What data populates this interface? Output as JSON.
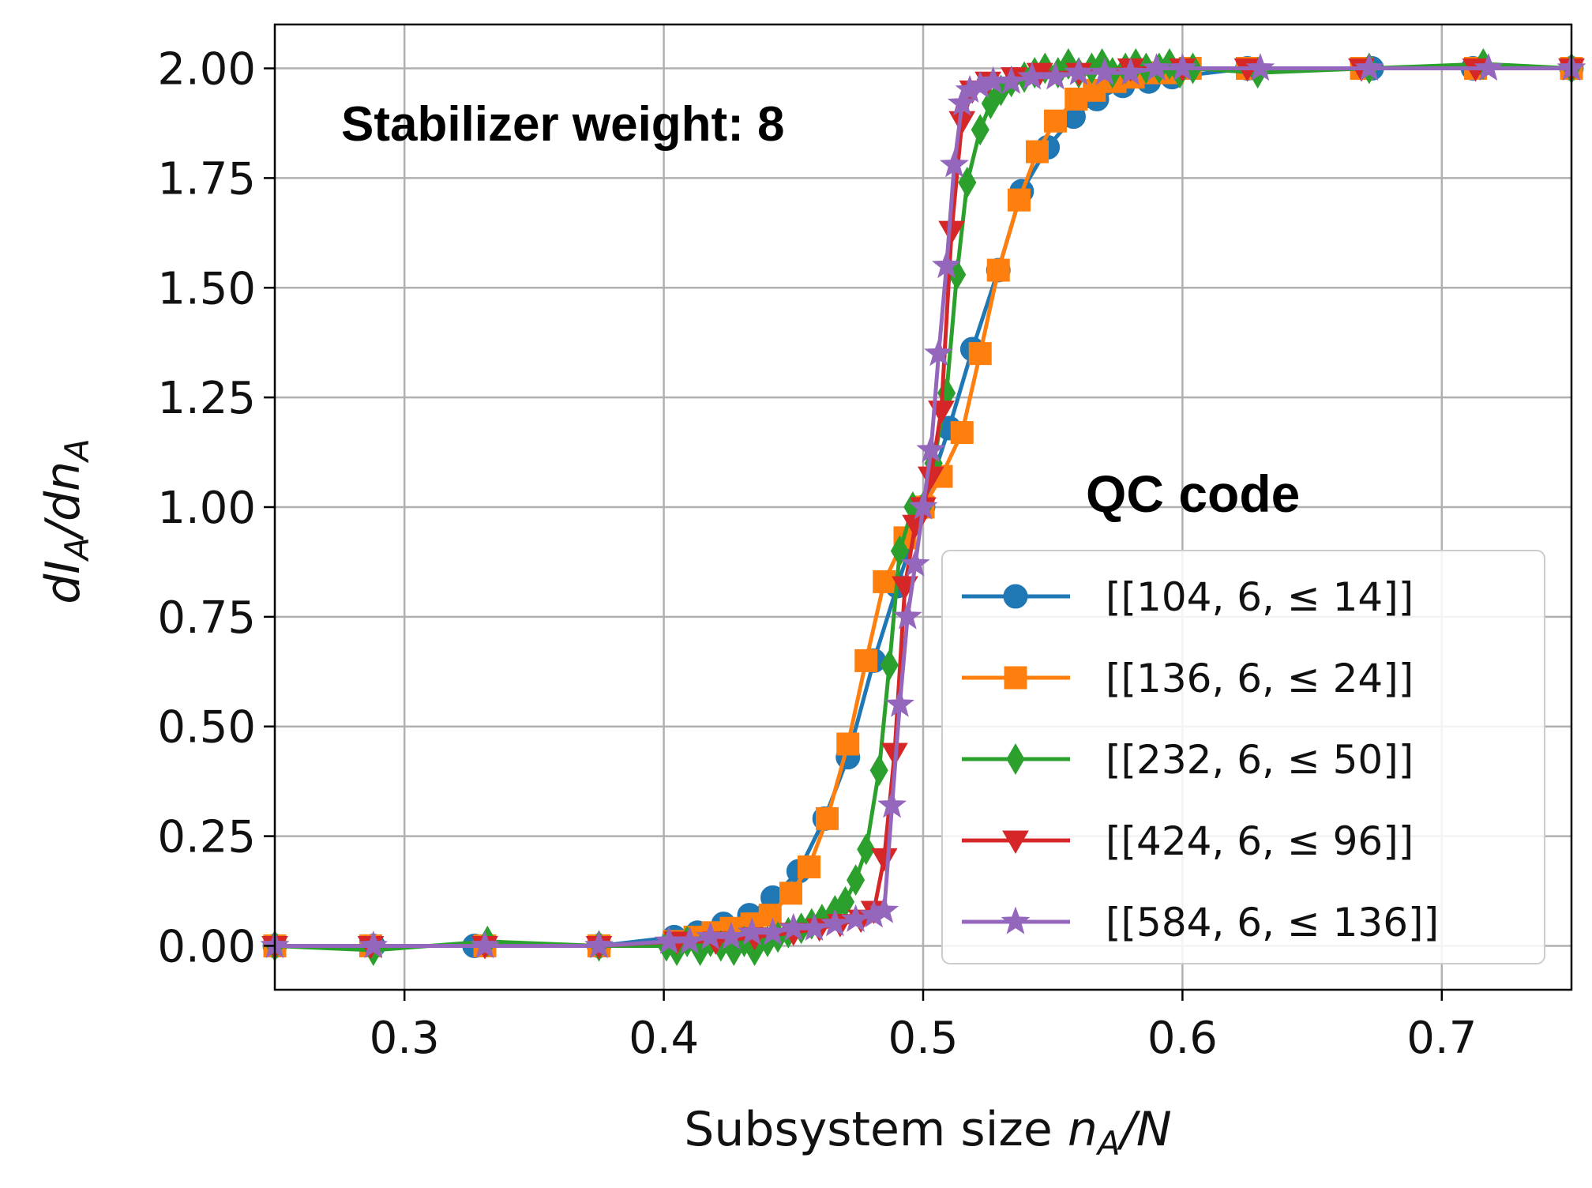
{
  "chart_data": {
    "type": "line",
    "xlabel_text": "Subsystem size ",
    "xlabel_var": "n",
    "xlabel_sub": "A",
    "xlabel_tail": "/N",
    "ylabel_d1": "dI",
    "ylabel_sub1": "A",
    "ylabel_mid": "/dn",
    "ylabel_sub2": "A",
    "xlim": [
      0.25,
      0.75
    ],
    "ylim": [
      -0.1,
      2.1
    ],
    "xticks": [
      0.3,
      0.4,
      0.5,
      0.6,
      0.7
    ],
    "xtick_labels": [
      "0.3",
      "0.4",
      "0.5",
      "0.6",
      "0.7"
    ],
    "yticks": [
      0,
      0.25,
      0.5,
      0.75,
      1.0,
      1.25,
      1.5,
      1.75,
      2.0
    ],
    "ytick_labels": [
      "0.00",
      "0.25",
      "0.50",
      "0.75",
      "1.00",
      "1.25",
      "1.50",
      "1.75",
      "2.00"
    ],
    "grid": true,
    "annotation": "Stabilizer weight: 8",
    "legend_title": "QC code",
    "legend_position": "lower-right",
    "series": [
      {
        "name": "[[104, 6, ≤ 14]]",
        "color": "#1f77b4",
        "marker": "circle",
        "x": [
          0.25,
          0.288,
          0.327,
          0.375,
          0.404,
          0.413,
          0.423,
          0.433,
          0.442,
          0.452,
          0.462,
          0.471,
          0.481,
          0.49,
          0.5,
          0.51,
          0.519,
          0.529,
          0.538,
          0.548,
          0.558,
          0.567,
          0.577,
          0.587,
          0.596,
          0.625,
          0.673,
          0.712,
          0.75
        ],
        "y": [
          0.0,
          0.0,
          0.0,
          0.0,
          0.02,
          0.03,
          0.05,
          0.07,
          0.11,
          0.17,
          0.29,
          0.43,
          0.65,
          0.82,
          1.0,
          1.18,
          1.36,
          1.54,
          1.72,
          1.82,
          1.89,
          1.93,
          1.96,
          1.97,
          1.98,
          2.0,
          2.0,
          2.0,
          2.0
        ]
      },
      {
        "name": "[[136, 6, ≤ 24]]",
        "color": "#ff7f0e",
        "marker": "square",
        "x": [
          0.25,
          0.287,
          0.331,
          0.375,
          0.404,
          0.412,
          0.419,
          0.426,
          0.434,
          0.441,
          0.449,
          0.456,
          0.463,
          0.471,
          0.478,
          0.485,
          0.493,
          0.5,
          0.507,
          0.515,
          0.522,
          0.529,
          0.537,
          0.544,
          0.551,
          0.559,
          0.566,
          0.574,
          0.581,
          0.588,
          0.596,
          0.603,
          0.625,
          0.669,
          0.713,
          0.75
        ],
        "y": [
          0.0,
          0.0,
          0.0,
          0.0,
          0.01,
          0.02,
          0.03,
          0.04,
          0.05,
          0.07,
          0.12,
          0.18,
          0.29,
          0.46,
          0.65,
          0.83,
          0.93,
          1.0,
          1.07,
          1.17,
          1.35,
          1.54,
          1.7,
          1.81,
          1.88,
          1.93,
          1.95,
          1.97,
          1.98,
          1.99,
          1.99,
          2.0,
          2.0,
          2.0,
          2.0,
          2.0
        ]
      },
      {
        "name": "[[232, 6, ≤ 50]]",
        "color": "#2ca02c",
        "marker": "diamond",
        "x": [
          0.25,
          0.288,
          0.332,
          0.375,
          0.401,
          0.405,
          0.409,
          0.414,
          0.418,
          0.422,
          0.427,
          0.431,
          0.435,
          0.44,
          0.444,
          0.448,
          0.453,
          0.457,
          0.461,
          0.466,
          0.47,
          0.474,
          0.478,
          0.483,
          0.487,
          0.491,
          0.496,
          0.5,
          0.504,
          0.509,
          0.513,
          0.517,
          0.522,
          0.526,
          0.53,
          0.534,
          0.539,
          0.543,
          0.547,
          0.552,
          0.556,
          0.56,
          0.565,
          0.569,
          0.573,
          0.578,
          0.582,
          0.586,
          0.591,
          0.595,
          0.599,
          0.604,
          0.629,
          0.672,
          0.716,
          0.75
        ],
        "y": [
          0.0,
          -0.01,
          0.01,
          0.0,
          0.0,
          -0.01,
          0.01,
          -0.01,
          0.01,
          0.0,
          -0.01,
          0.01,
          -0.01,
          0.01,
          0.02,
          0.03,
          0.04,
          0.05,
          0.06,
          0.08,
          0.1,
          0.15,
          0.22,
          0.4,
          0.64,
          0.9,
          1.0,
          1.0,
          1.1,
          1.26,
          1.53,
          1.74,
          1.86,
          1.92,
          1.95,
          1.97,
          1.98,
          1.99,
          2.0,
          1.99,
          2.01,
          1.99,
          2.0,
          2.01,
          1.99,
          2.0,
          2.01,
          2.0,
          2.0,
          2.01,
          1.99,
          2.0,
          1.99,
          2.0,
          2.01,
          2.0
        ]
      },
      {
        "name": "[[424, 6, ≤ 96]]",
        "color": "#d62728",
        "marker": "triangle-down",
        "x": [
          0.25,
          0.287,
          0.331,
          0.375,
          0.405,
          0.42,
          0.435,
          0.45,
          0.46,
          0.468,
          0.476,
          0.481,
          0.485,
          0.489,
          0.493,
          0.497,
          0.5,
          0.503,
          0.507,
          0.511,
          0.515,
          0.519,
          0.525,
          0.535,
          0.545,
          0.56,
          0.58,
          0.6,
          0.625,
          0.669,
          0.713,
          0.75
        ],
        "y": [
          0.0,
          0.0,
          0.0,
          0.0,
          0.01,
          0.01,
          0.02,
          0.03,
          0.04,
          0.05,
          0.06,
          0.08,
          0.2,
          0.44,
          0.82,
          0.96,
          1.0,
          1.07,
          1.22,
          1.63,
          1.88,
          1.95,
          1.97,
          1.98,
          1.99,
          1.99,
          2.0,
          2.0,
          2.0,
          2.0,
          2.0,
          2.0
        ]
      },
      {
        "name": "[[584, 6, ≤ 136]]",
        "color": "#9467bd",
        "marker": "star",
        "x": [
          0.25,
          0.288,
          0.331,
          0.375,
          0.402,
          0.41,
          0.418,
          0.426,
          0.434,
          0.442,
          0.45,
          0.458,
          0.466,
          0.474,
          0.481,
          0.485,
          0.488,
          0.491,
          0.494,
          0.497,
          0.5,
          0.503,
          0.506,
          0.509,
          0.512,
          0.515,
          0.518,
          0.522,
          0.527,
          0.534,
          0.542,
          0.551,
          0.56,
          0.57,
          0.58,
          0.59,
          0.6,
          0.63,
          0.672,
          0.718,
          0.75
        ],
        "y": [
          0.0,
          0.0,
          0.0,
          0.0,
          0.01,
          0.01,
          0.02,
          0.02,
          0.03,
          0.03,
          0.04,
          0.04,
          0.05,
          0.06,
          0.07,
          0.08,
          0.32,
          0.55,
          0.75,
          0.87,
          1.0,
          1.13,
          1.35,
          1.55,
          1.78,
          1.92,
          1.95,
          1.96,
          1.97,
          1.97,
          1.98,
          1.98,
          1.99,
          1.99,
          1.99,
          2.0,
          2.0,
          2.0,
          2.0,
          2.0,
          2.0
        ]
      }
    ]
  }
}
